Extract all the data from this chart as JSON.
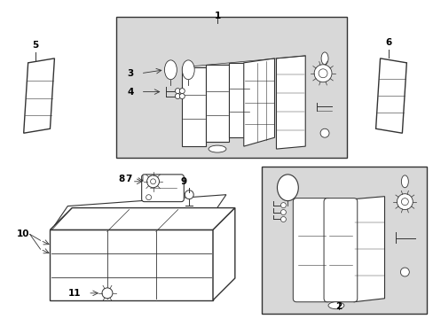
{
  "background_color": "#ffffff",
  "line_color": "#333333",
  "fill_light": "#d8d8d8",
  "fill_white": "#ffffff",
  "text_color": "#000000",
  "fig_w": 4.89,
  "fig_h": 3.6,
  "dpi": 100
}
